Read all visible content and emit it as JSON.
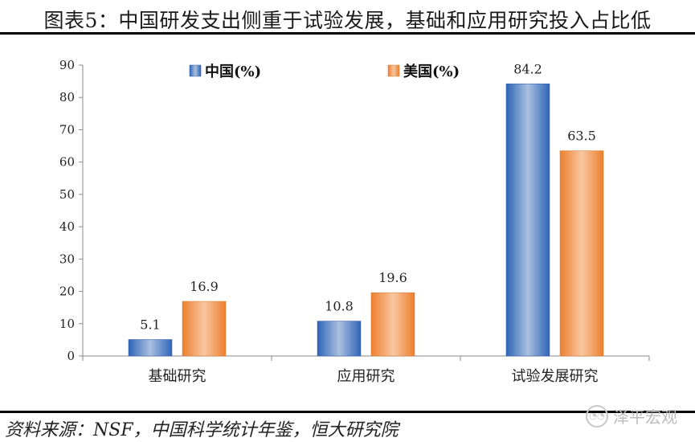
{
  "title": "图表5：中国研发支出侧重于试验发展，基础和应用研究投入占比低",
  "source": "资料来源：NSF，中国科学统计年鉴，恒大研究院",
  "watermark": "泽平宏观",
  "colors": {
    "china": "#3f76c8",
    "china_light": "#a9c0de",
    "usa": "#ef8a3c",
    "usa_light": "#f9c6a0"
  },
  "chart_data": {
    "type": "bar",
    "title": "图表5：中国研发支出侧重于试验发展，基础和应用研究投入占比低",
    "categories": [
      "基础研究",
      "应用研究",
      "试验发展研究"
    ],
    "series": [
      {
        "name": "中国(%)",
        "values": [
          5.1,
          10.8,
          84.2
        ]
      },
      {
        "name": "美国(%)",
        "values": [
          16.9,
          19.6,
          63.5
        ]
      }
    ],
    "ylim": [
      0,
      90
    ],
    "yticks": [
      0,
      10,
      20,
      30,
      40,
      50,
      60,
      70,
      80,
      90
    ],
    "xlabel": "",
    "ylabel": "",
    "legend": "top",
    "grid": false
  }
}
